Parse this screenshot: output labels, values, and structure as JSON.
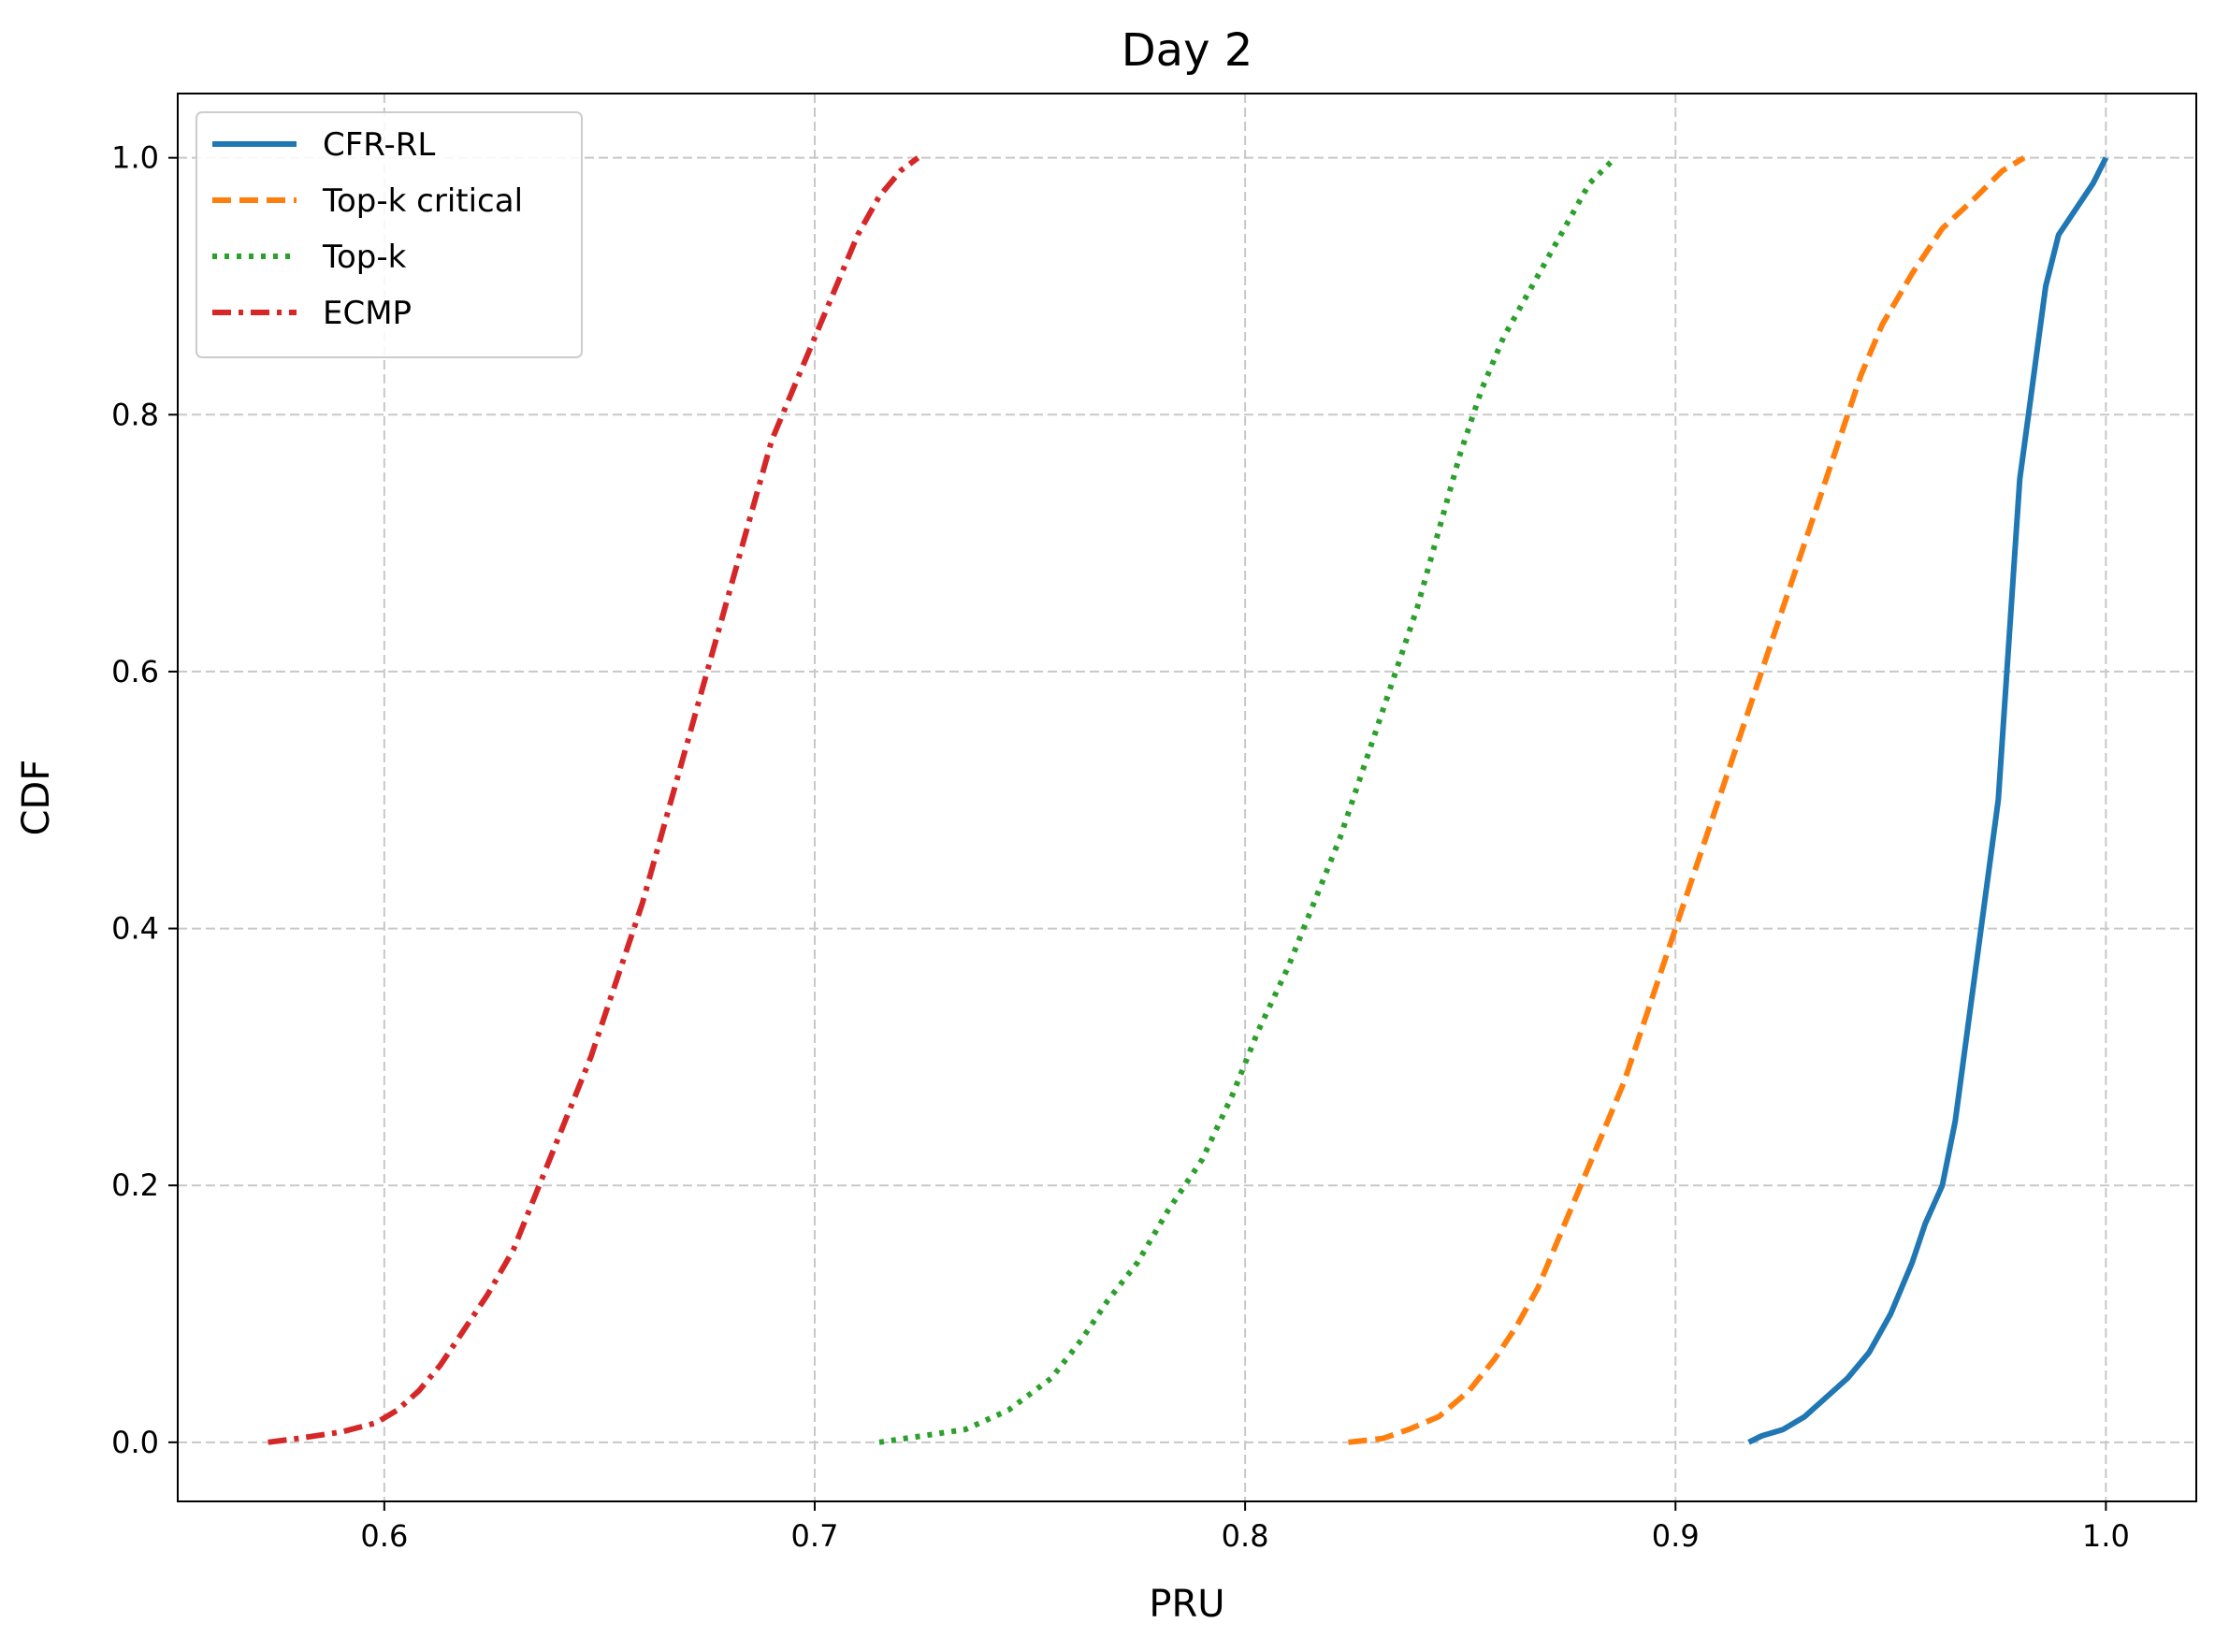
{
  "chart_data": {
    "type": "line",
    "title": "Day 2",
    "xlabel": "PRU",
    "ylabel": "CDF",
    "xlim": [
      0.552,
      1.021
    ],
    "ylim": [
      -0.046,
      1.05
    ],
    "xticks": [
      0.6,
      0.7,
      0.8,
      0.9,
      1.0
    ],
    "xtick_labels": [
      "0.6",
      "0.7",
      "0.8",
      "0.9",
      "1.0"
    ],
    "yticks": [
      0.0,
      0.2,
      0.4,
      0.6,
      0.8,
      1.0
    ],
    "ytick_labels": [
      "0.0",
      "0.2",
      "0.4",
      "0.6",
      "0.8",
      "1.0"
    ],
    "grid": true,
    "legend_position": "top-left",
    "series": [
      {
        "name": "CFR-RL",
        "color": "#1f77b4",
        "dash": "solid",
        "x": [
          0.917,
          0.92,
          0.925,
          0.93,
          0.935,
          0.94,
          0.945,
          0.95,
          0.955,
          0.958,
          0.962,
          0.965,
          0.967,
          0.969,
          0.971,
          0.973,
          0.975,
          0.977,
          0.979,
          0.98,
          0.982,
          0.984,
          0.986,
          0.989,
          0.993,
          0.997,
          1.0
        ],
        "y": [
          0.0,
          0.005,
          0.01,
          0.02,
          0.035,
          0.05,
          0.07,
          0.1,
          0.14,
          0.17,
          0.2,
          0.25,
          0.3,
          0.35,
          0.4,
          0.45,
          0.5,
          0.6,
          0.7,
          0.75,
          0.8,
          0.85,
          0.9,
          0.94,
          0.96,
          0.98,
          1.0
        ]
      },
      {
        "name": "Top-k critical",
        "color": "#ff7f0e",
        "dash": "dashed",
        "x": [
          0.824,
          0.832,
          0.838,
          0.845,
          0.852,
          0.858,
          0.863,
          0.868,
          0.873,
          0.878,
          0.883,
          0.888,
          0.893,
          0.898,
          0.903,
          0.908,
          0.913,
          0.918,
          0.923,
          0.928,
          0.933,
          0.938,
          0.943,
          0.948,
          0.955,
          0.962,
          0.97,
          0.976,
          0.981
        ],
        "y": [
          0.0,
          0.003,
          0.01,
          0.02,
          0.04,
          0.065,
          0.09,
          0.12,
          0.16,
          0.2,
          0.24,
          0.28,
          0.33,
          0.38,
          0.43,
          0.48,
          0.53,
          0.58,
          0.63,
          0.68,
          0.73,
          0.78,
          0.83,
          0.87,
          0.91,
          0.945,
          0.97,
          0.99,
          1.0
        ]
      },
      {
        "name": "Top-k",
        "color": "#2ca02c",
        "dash": "dotted",
        "x": [
          0.715,
          0.725,
          0.735,
          0.745,
          0.755,
          0.762,
          0.768,
          0.775,
          0.782,
          0.79,
          0.797,
          0.803,
          0.81,
          0.816,
          0.822,
          0.828,
          0.834,
          0.84,
          0.845,
          0.85,
          0.855,
          0.86,
          0.865,
          0.87,
          0.875,
          0.88,
          0.886
        ],
        "y": [
          0.0,
          0.005,
          0.01,
          0.025,
          0.05,
          0.08,
          0.11,
          0.14,
          0.18,
          0.22,
          0.27,
          0.32,
          0.37,
          0.42,
          0.47,
          0.53,
          0.59,
          0.65,
          0.71,
          0.77,
          0.82,
          0.86,
          0.89,
          0.92,
          0.95,
          0.98,
          1.0
        ]
      },
      {
        "name": "ECMP",
        "color": "#d62728",
        "dash": "dashdot",
        "x": [
          0.573,
          0.58,
          0.59,
          0.598,
          0.603,
          0.608,
          0.613,
          0.618,
          0.624,
          0.63,
          0.636,
          0.642,
          0.648,
          0.654,
          0.66,
          0.665,
          0.67,
          0.675,
          0.68,
          0.685,
          0.69,
          0.695,
          0.7,
          0.705,
          0.71,
          0.715,
          0.72,
          0.724
        ],
        "y": [
          0.0,
          0.003,
          0.008,
          0.015,
          0.025,
          0.04,
          0.06,
          0.085,
          0.115,
          0.15,
          0.2,
          0.25,
          0.3,
          0.36,
          0.42,
          0.48,
          0.54,
          0.6,
          0.66,
          0.72,
          0.78,
          0.82,
          0.86,
          0.9,
          0.94,
          0.97,
          0.99,
          1.0
        ]
      }
    ]
  }
}
